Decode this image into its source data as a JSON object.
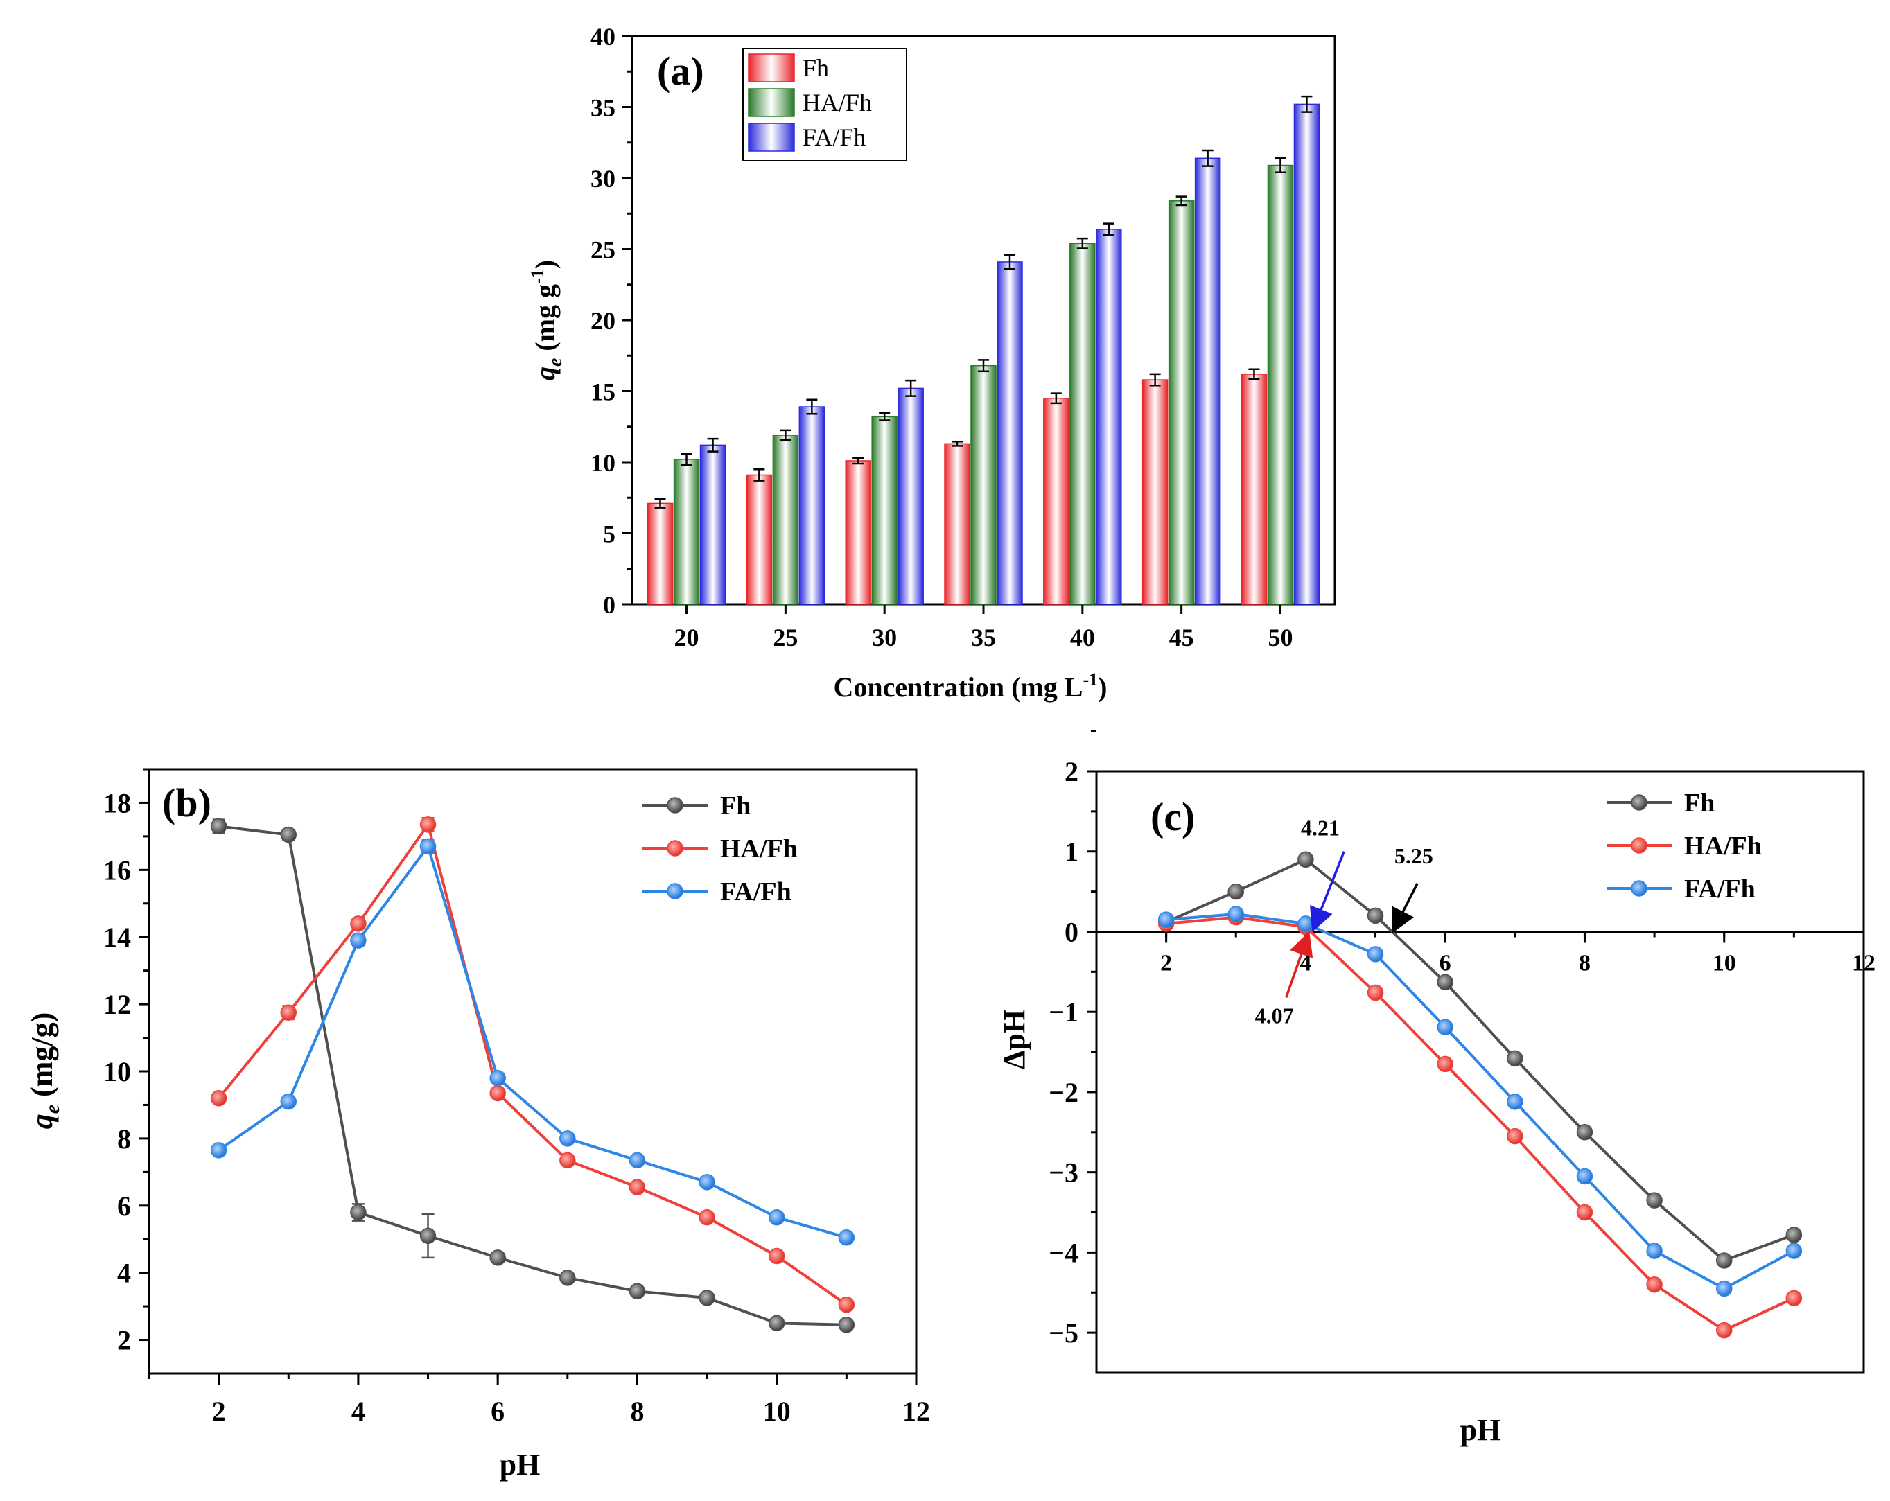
{
  "colors": {
    "Fh_bar": "#e8262c",
    "HA_bar": "#2a7a2a",
    "FA_bar": "#2b2bdc",
    "Fh_line": "#505050",
    "HA_line": "#f0403a",
    "FA_line": "#2e86e6",
    "arrow_black": "#000000",
    "arrow_blue": "#1f1fe0",
    "arrow_red": "#e02020"
  },
  "chart_data": [
    {
      "id": "a",
      "type": "bar",
      "panel_label": "(a)",
      "xlabel": "Concentration (mg L",
      "xlabel_sup": "-1",
      "xlabel_end": ")",
      "ylabel_var": "q",
      "ylabel_sub": "e",
      "ylabel_units": " (mg g",
      "ylabel_sup": "-1",
      "ylabel_end": ")",
      "ylim": [
        0,
        40
      ],
      "yticks": [
        "0",
        "5",
        "10",
        "15",
        "20",
        "25",
        "30",
        "35",
        "40"
      ],
      "categories": [
        "20",
        "25",
        "30",
        "35",
        "40",
        "45",
        "50"
      ],
      "legend_position": "top-left",
      "series": [
        {
          "name": "Fh",
          "values": [
            7.1,
            9.1,
            10.1,
            11.3,
            14.5,
            15.8,
            16.2
          ],
          "err": [
            0.3,
            0.4,
            0.2,
            0.15,
            0.35,
            0.4,
            0.35
          ]
        },
        {
          "name": "HA/Fh",
          "values": [
            10.2,
            11.9,
            13.2,
            16.8,
            25.4,
            28.4,
            30.9
          ],
          "err": [
            0.4,
            0.35,
            0.25,
            0.4,
            0.35,
            0.3,
            0.5
          ]
        },
        {
          "name": "FA/Fh",
          "values": [
            11.2,
            13.9,
            15.2,
            24.1,
            26.4,
            31.4,
            35.2
          ],
          "err": [
            0.45,
            0.5,
            0.55,
            0.5,
            0.4,
            0.55,
            0.55
          ]
        }
      ]
    },
    {
      "id": "b",
      "type": "line",
      "panel_label": "(b)",
      "xlabel": "pH",
      "ylabel_var": "q",
      "ylabel_sub": "e",
      "ylabel_units": " (mg/g)",
      "xlim": [
        1,
        12
      ],
      "ylim": [
        1,
        19
      ],
      "xticks": [
        "2",
        "4",
        "6",
        "8",
        "10",
        "12"
      ],
      "yticks": [
        "2",
        "4",
        "6",
        "8",
        "10",
        "12",
        "14",
        "16",
        "18"
      ],
      "legend_position": "top-right",
      "x": [
        2,
        3,
        4,
        5,
        6,
        7,
        8,
        9,
        10,
        11
      ],
      "series": [
        {
          "name": "Fh",
          "values": [
            17.3,
            17.05,
            5.8,
            5.1,
            4.45,
            3.85,
            3.45,
            3.25,
            2.5,
            2.45
          ],
          "err": [
            0.2,
            0.15,
            0.25,
            0.65,
            0.1,
            0.1,
            0.05,
            0.05,
            0.05,
            0.05
          ]
        },
        {
          "name": "HA/Fh",
          "values": [
            9.2,
            11.75,
            14.4,
            17.35,
            9.35,
            7.35,
            6.55,
            5.65,
            4.5,
            3.05
          ],
          "err": [
            0.05,
            0.2,
            0.1,
            0.2,
            0.1,
            0.15,
            0.05,
            0.05,
            0.05,
            0.05
          ]
        },
        {
          "name": "FA/Fh",
          "values": [
            7.65,
            9.1,
            13.9,
            16.7,
            9.8,
            8.0,
            7.35,
            6.7,
            5.65,
            5.05
          ],
          "err": [
            0.05,
            0.05,
            0.15,
            0.2,
            0.1,
            0.05,
            0.1,
            0.15,
            0.05,
            0.05
          ]
        }
      ]
    },
    {
      "id": "c",
      "type": "line",
      "panel_label": "(c)",
      "xlabel": "pH",
      "ylabel": "ΔpH",
      "xlim": [
        1,
        12
      ],
      "ylim": [
        -5.5,
        2
      ],
      "xticks": [
        "2",
        "4",
        "6",
        "8",
        "10",
        "12"
      ],
      "yticks": [
        "2",
        "1",
        "0",
        "−1",
        "−2",
        "−3",
        "−4",
        "−5"
      ],
      "legend_position": "top-right",
      "x": [
        2,
        3,
        4,
        5,
        6,
        7,
        8,
        9,
        10,
        11
      ],
      "series": [
        {
          "name": "Fh",
          "values": [
            0.12,
            0.5,
            0.9,
            0.2,
            -0.63,
            -1.58,
            -2.5,
            -3.35,
            -4.1,
            -3.78
          ]
        },
        {
          "name": "HA/Fh",
          "values": [
            0.1,
            0.18,
            0.06,
            -0.76,
            -1.65,
            -2.55,
            -3.5,
            -4.4,
            -4.97,
            -4.57
          ]
        },
        {
          "name": "FA/Fh",
          "values": [
            0.15,
            0.22,
            0.1,
            -0.28,
            -1.19,
            -2.12,
            -3.05,
            -3.98,
            -4.45,
            -3.98
          ]
        }
      ],
      "annotations": [
        {
          "id": "blue",
          "text": "4.21"
        },
        {
          "id": "black",
          "text": "5.25"
        },
        {
          "id": "red",
          "text": "4.07"
        }
      ]
    }
  ]
}
